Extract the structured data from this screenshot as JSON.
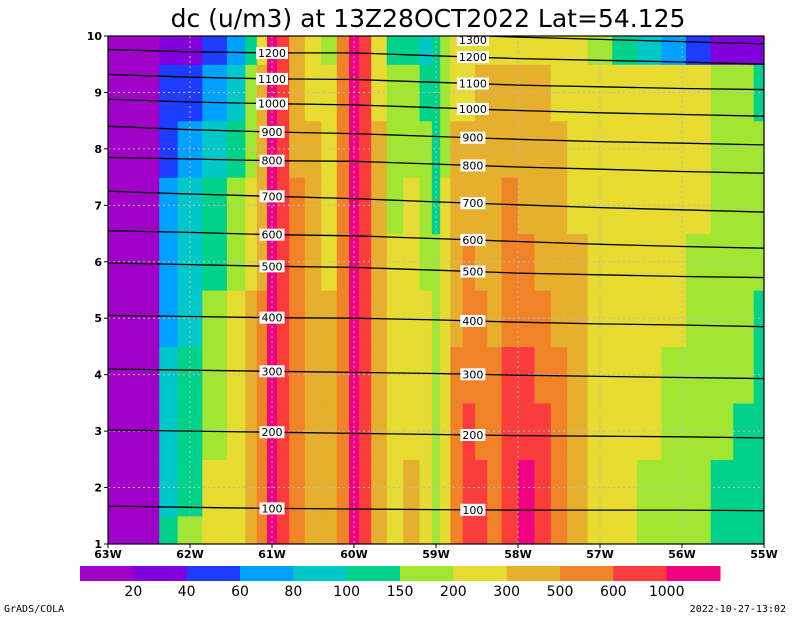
{
  "chart_data": {
    "type": "heatmap",
    "title": "dc (u/m3) at 13Z28OCT2022 Lat=54.125",
    "xlabel": "",
    "ylabel": "",
    "xlim": [
      -63,
      -55
    ],
    "ylim": [
      1,
      10
    ],
    "x_ticks": [
      {
        "value": -63,
        "label": "63W"
      },
      {
        "value": -62,
        "label": "62W"
      },
      {
        "value": -61,
        "label": "61W"
      },
      {
        "value": -60,
        "label": "60W"
      },
      {
        "value": -59,
        "label": "59W"
      },
      {
        "value": -58,
        "label": "58W"
      },
      {
        "value": -57,
        "label": "57W"
      },
      {
        "value": -56,
        "label": "56W"
      },
      {
        "value": -55,
        "label": "55W"
      }
    ],
    "y_ticks": [
      {
        "value": 1,
        "label": "1"
      },
      {
        "value": 2,
        "label": "2"
      },
      {
        "value": 3,
        "label": "3"
      },
      {
        "value": 4,
        "label": "4"
      },
      {
        "value": 5,
        "label": "5"
      },
      {
        "value": 6,
        "label": "6"
      },
      {
        "value": 7,
        "label": "7"
      },
      {
        "value": 8,
        "label": "8"
      },
      {
        "value": 9,
        "label": "9"
      },
      {
        "value": 10,
        "label": "10"
      }
    ],
    "grid": true,
    "colorbar": {
      "placement": "bottom",
      "colors": [
        "#a000c8",
        "#8200dc",
        "#1e3cff",
        "#00a0ff",
        "#00c8c8",
        "#00d28c",
        "#a0e632",
        "#e6dc32",
        "#e6af2d",
        "#f08228",
        "#fa3c3c",
        "#f00082"
      ],
      "labels": [
        "20",
        "40",
        "60",
        "80",
        "100",
        "150",
        "200",
        "300",
        "500",
        "600",
        "1000"
      ]
    },
    "x_columns": [
      -63.0,
      -62.6,
      -62.45,
      -62.3,
      -62.0,
      -61.7,
      -61.4,
      -61.25,
      -61.12,
      -61.0,
      -60.88,
      -60.7,
      -60.5,
      -60.3,
      -60.12,
      -60.0,
      -59.88,
      -59.7,
      -59.5,
      -59.3,
      -59.1,
      -59.0,
      -58.9,
      -58.75,
      -58.6,
      -58.45,
      -58.3,
      -58.1,
      -57.9,
      -57.7,
      -57.5,
      -57.3,
      -57.0,
      -56.7,
      -56.4,
      -56.1,
      -55.8,
      -55.5,
      -55.25,
      -55.0
    ],
    "y_rows": [
      1,
      2,
      3,
      4,
      5,
      6,
      7,
      8,
      9,
      10
    ],
    "z_class_grid": [
      [
        0,
        0,
        0,
        5,
        6,
        7,
        7,
        8,
        9,
        11,
        10,
        9,
        8,
        8,
        9,
        11,
        10,
        8,
        7,
        8,
        7,
        6,
        7,
        9,
        10,
        10,
        9,
        10,
        11,
        10,
        9,
        8,
        7,
        7,
        6,
        6,
        6,
        5,
        5,
        5
      ],
      [
        0,
        0,
        0,
        4,
        5,
        7,
        7,
        8,
        9,
        11,
        10,
        9,
        8,
        8,
        9,
        11,
        10,
        8,
        7,
        8,
        7,
        6,
        7,
        9,
        10,
        10,
        9,
        10,
        11,
        10,
        9,
        8,
        7,
        7,
        6,
        6,
        6,
        5,
        5,
        5
      ],
      [
        0,
        0,
        0,
        4,
        5,
        6,
        7,
        8,
        9,
        11,
        10,
        9,
        8,
        8,
        9,
        11,
        10,
        8,
        7,
        7,
        7,
        6,
        7,
        9,
        10,
        9,
        9,
        10,
        10,
        10,
        9,
        8,
        7,
        7,
        7,
        6,
        6,
        6,
        5,
        5
      ],
      [
        0,
        0,
        0,
        4,
        5,
        6,
        7,
        8,
        9,
        11,
        10,
        9,
        8,
        8,
        9,
        11,
        10,
        8,
        7,
        7,
        7,
        6,
        7,
        9,
        9,
        9,
        9,
        10,
        10,
        9,
        9,
        8,
        7,
        7,
        7,
        6,
        6,
        6,
        6,
        5
      ],
      [
        0,
        0,
        0,
        3,
        4,
        6,
        7,
        8,
        9,
        11,
        10,
        9,
        8,
        8,
        9,
        11,
        10,
        8,
        7,
        7,
        7,
        6,
        7,
        8,
        9,
        9,
        8,
        9,
        9,
        9,
        8,
        8,
        7,
        7,
        7,
        7,
        6,
        6,
        6,
        5
      ],
      [
        0,
        0,
        0,
        3,
        4,
        5,
        6,
        7,
        8,
        11,
        10,
        9,
        8,
        7,
        9,
        11,
        10,
        8,
        7,
        7,
        6,
        6,
        7,
        8,
        9,
        8,
        8,
        9,
        9,
        8,
        8,
        8,
        7,
        7,
        7,
        7,
        6,
        6,
        6,
        6
      ],
      [
        0,
        0,
        0,
        3,
        4,
        5,
        6,
        7,
        8,
        11,
        10,
        9,
        8,
        7,
        9,
        11,
        10,
        8,
        6,
        7,
        6,
        5,
        7,
        8,
        8,
        8,
        8,
        9,
        8,
        8,
        8,
        7,
        7,
        7,
        7,
        7,
        7,
        6,
        6,
        6
      ],
      [
        0,
        0,
        0,
        2,
        3,
        4,
        5,
        6,
        8,
        11,
        10,
        8,
        8,
        7,
        9,
        11,
        10,
        8,
        6,
        6,
        6,
        5,
        6,
        8,
        8,
        8,
        8,
        8,
        8,
        8,
        8,
        7,
        7,
        7,
        7,
        7,
        7,
        6,
        6,
        6
      ],
      [
        0,
        0,
        0,
        2,
        2,
        3,
        4,
        6,
        8,
        11,
        10,
        8,
        7,
        7,
        9,
        11,
        10,
        7,
        6,
        6,
        5,
        5,
        6,
        7,
        7,
        8,
        8,
        8,
        8,
        8,
        7,
        7,
        7,
        7,
        7,
        7,
        7,
        6,
        6,
        5
      ],
      [
        0,
        0,
        0,
        1,
        1,
        2,
        3,
        5,
        7,
        11,
        10,
        8,
        7,
        6,
        9,
        11,
        10,
        7,
        5,
        5,
        4,
        5,
        6,
        7,
        7,
        7,
        7,
        7,
        7,
        7,
        7,
        7,
        6,
        5,
        4,
        3,
        2,
        1,
        1,
        1
      ]
    ],
    "line_series": [
      {
        "label": "100",
        "values": [
          [
            -63,
            1.67
          ],
          [
            -62,
            1.65
          ],
          [
            -61,
            1.63
          ],
          [
            -60,
            1.62
          ],
          [
            -59,
            1.61
          ],
          [
            -58,
            1.6
          ],
          [
            -57,
            1.6
          ],
          [
            -56,
            1.6
          ],
          [
            -55,
            1.59
          ]
        ]
      },
      {
        "label": "200",
        "values": [
          [
            -63,
            3.02
          ],
          [
            -62,
            3.0
          ],
          [
            -61,
            2.98
          ],
          [
            -60,
            2.96
          ],
          [
            -59,
            2.94
          ],
          [
            -58,
            2.92
          ],
          [
            -57,
            2.91
          ],
          [
            -56,
            2.9
          ],
          [
            -55,
            2.88
          ]
        ]
      },
      {
        "label": "300",
        "values": [
          [
            -63,
            4.1
          ],
          [
            -62,
            4.08
          ],
          [
            -61,
            4.06
          ],
          [
            -60,
            4.04
          ],
          [
            -59,
            4.02
          ],
          [
            -58,
            3.99
          ],
          [
            -57,
            3.97
          ],
          [
            -56,
            3.95
          ],
          [
            -55,
            3.93
          ]
        ]
      },
      {
        "label": "400",
        "values": [
          [
            -63,
            5.05
          ],
          [
            -62,
            5.03
          ],
          [
            -61,
            5.01
          ],
          [
            -60,
            5.0
          ],
          [
            -59,
            4.97
          ],
          [
            -58,
            4.93
          ],
          [
            -57,
            4.9
          ],
          [
            -56,
            4.88
          ],
          [
            -55,
            4.85
          ]
        ]
      },
      {
        "label": "500",
        "values": [
          [
            -63,
            5.98
          ],
          [
            -62,
            5.95
          ],
          [
            -61,
            5.92
          ],
          [
            -60,
            5.9
          ],
          [
            -59,
            5.85
          ],
          [
            -58,
            5.8
          ],
          [
            -57,
            5.77
          ],
          [
            -56,
            5.74
          ],
          [
            -55,
            5.72
          ]
        ]
      },
      {
        "label": "600",
        "values": [
          [
            -63,
            6.55
          ],
          [
            -62,
            6.52
          ],
          [
            -61,
            6.48
          ],
          [
            -60,
            6.46
          ],
          [
            -59,
            6.41
          ],
          [
            -58,
            6.36
          ],
          [
            -57,
            6.31
          ],
          [
            -56,
            6.27
          ],
          [
            -55,
            6.24
          ]
        ]
      },
      {
        "label": "700",
        "values": [
          [
            -63,
            7.25
          ],
          [
            -62,
            7.2
          ],
          [
            -61,
            7.16
          ],
          [
            -60,
            7.12
          ],
          [
            -59,
            7.06
          ],
          [
            -58,
            7.01
          ],
          [
            -57,
            6.96
          ],
          [
            -56,
            6.92
          ],
          [
            -55,
            6.88
          ]
        ]
      },
      {
        "label": "800",
        "values": [
          [
            -63,
            7.85
          ],
          [
            -62,
            7.82
          ],
          [
            -61,
            7.79
          ],
          [
            -60,
            7.78
          ],
          [
            -59,
            7.73
          ],
          [
            -58,
            7.68
          ],
          [
            -57,
            7.64
          ],
          [
            -56,
            7.6
          ],
          [
            -55,
            7.57
          ]
        ]
      },
      {
        "label": "900",
        "values": [
          [
            -63,
            8.4
          ],
          [
            -62,
            8.34
          ],
          [
            -61,
            8.3
          ],
          [
            -60,
            8.27
          ],
          [
            -59,
            8.22
          ],
          [
            -58,
            8.17
          ],
          [
            -57,
            8.13
          ],
          [
            -56,
            8.1
          ],
          [
            -55,
            8.07
          ]
        ]
      },
      {
        "label": "1000",
        "values": [
          [
            -63,
            8.88
          ],
          [
            -62,
            8.83
          ],
          [
            -61,
            8.8
          ],
          [
            -60,
            8.78
          ],
          [
            -59,
            8.73
          ],
          [
            -58,
            8.68
          ],
          [
            -57,
            8.64
          ],
          [
            -56,
            8.61
          ],
          [
            -55,
            8.58
          ]
        ]
      },
      {
        "label": "1100",
        "values": [
          [
            -63,
            9.32
          ],
          [
            -62,
            9.27
          ],
          [
            -61,
            9.24
          ],
          [
            -60,
            9.23
          ],
          [
            -59,
            9.18
          ],
          [
            -58,
            9.13
          ],
          [
            -57,
            9.1
          ],
          [
            -56,
            9.07
          ],
          [
            -55,
            9.05
          ]
        ]
      },
      {
        "label": "1200",
        "values": [
          [
            -63,
            9.76
          ],
          [
            -62,
            9.72
          ],
          [
            -61,
            9.7
          ],
          [
            -60,
            9.7
          ],
          [
            -59,
            9.65
          ],
          [
            -58,
            9.6
          ],
          [
            -57,
            9.57
          ],
          [
            -56,
            9.54
          ],
          [
            -55,
            9.5
          ]
        ]
      },
      {
        "label": "1300",
        "values": [
          [
            -63,
            10.2
          ],
          [
            -62,
            10.16
          ],
          [
            -61,
            10.13
          ],
          [
            -60,
            10.12
          ],
          [
            -59,
            10.03
          ],
          [
            -58,
            9.98
          ],
          [
            -57,
            9.94
          ],
          [
            -56,
            9.9
          ],
          [
            -55,
            9.86
          ]
        ]
      }
    ],
    "line_label_positions": [
      {
        "x": -61.0,
        "labels": [
          "100",
          "200",
          "300",
          "400",
          "500",
          "600",
          "700",
          "800",
          "900",
          "1000",
          "1100",
          "1200"
        ]
      },
      {
        "x": -58.55,
        "labels": [
          "100",
          "200",
          "300",
          "400",
          "500",
          "600",
          "700",
          "800",
          "900",
          "1000",
          "1100",
          "1200",
          "1300"
        ]
      }
    ]
  },
  "footer": {
    "left": "GrADS/COLA",
    "right": "2022-10-27-13:02"
  }
}
